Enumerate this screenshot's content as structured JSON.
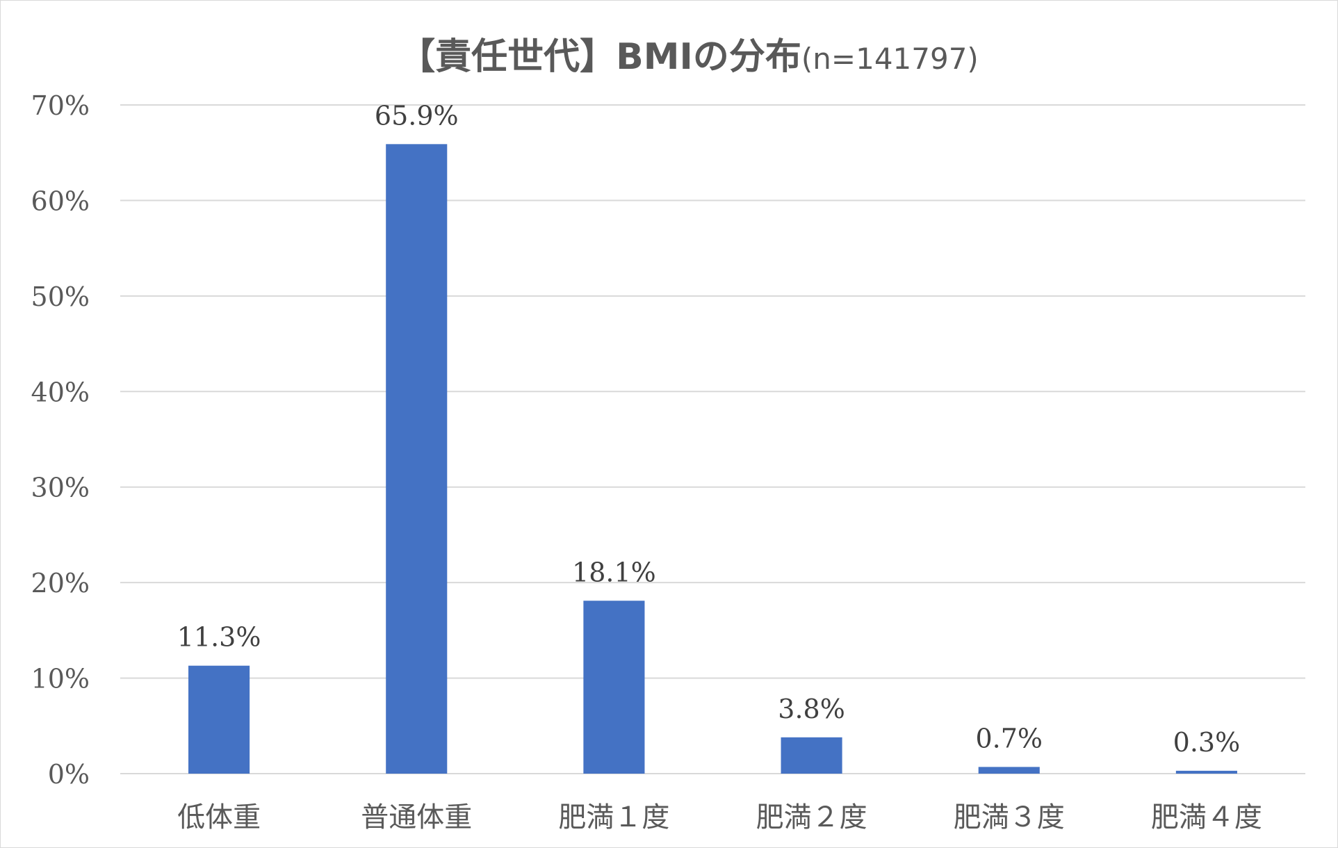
{
  "chart_data": {
    "type": "bar",
    "title": "【責任世代】BMIの分布",
    "subtitle": "(n=141797)",
    "categories": [
      "低体重",
      "普通体重",
      "肥満１度",
      "肥満２度",
      "肥満３度",
      "肥満４度"
    ],
    "values": [
      11.3,
      65.9,
      18.1,
      3.8,
      0.7,
      0.3
    ],
    "data_labels": [
      "11.3%",
      "65.9%",
      "18.1%",
      "3.8%",
      "0.7%",
      "0.3%"
    ],
    "yticks": [
      "0%",
      "10%",
      "20%",
      "30%",
      "40%",
      "50%",
      "60%",
      "70%"
    ],
    "ylim": [
      0,
      70
    ],
    "grid": true,
    "bar_color": "#4472C4",
    "grid_color": "#d9d9d9",
    "xlabel": "",
    "ylabel": ""
  }
}
